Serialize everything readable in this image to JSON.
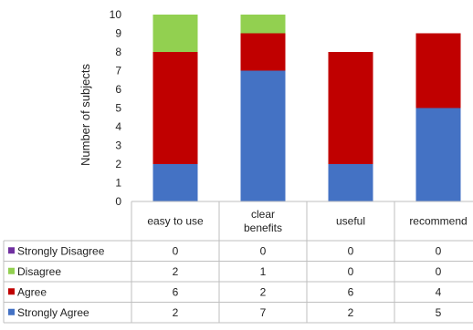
{
  "chart_data": {
    "type": "bar",
    "stacked": true,
    "title": "",
    "xlabel": "",
    "ylabel": "Number of subjects",
    "ylim": [
      0,
      10
    ],
    "yticks": [
      0,
      1,
      2,
      3,
      4,
      5,
      6,
      7,
      8,
      9,
      10
    ],
    "grid": false,
    "legend": "data-table",
    "categories": [
      {
        "lines": [
          "easy to use"
        ]
      },
      {
        "lines": [
          "clear",
          "benefits"
        ]
      },
      {
        "lines": [
          "useful"
        ]
      },
      {
        "lines": [
          "recommend"
        ]
      }
    ],
    "series": [
      {
        "name": "Strongly Agree",
        "color": "#4472c4",
        "values": [
          2,
          7,
          2,
          5
        ]
      },
      {
        "name": "Agree",
        "color": "#c00000",
        "values": [
          6,
          2,
          6,
          4
        ]
      },
      {
        "name": "Disagree",
        "color": "#92d050",
        "values": [
          2,
          1,
          0,
          0
        ]
      },
      {
        "name": "Strongly Disagree",
        "color": "#7030a0",
        "values": [
          0,
          0,
          0,
          0
        ]
      }
    ],
    "table_row_order": [
      "Strongly Disagree",
      "Disagree",
      "Agree",
      "Strongly Agree"
    ]
  }
}
